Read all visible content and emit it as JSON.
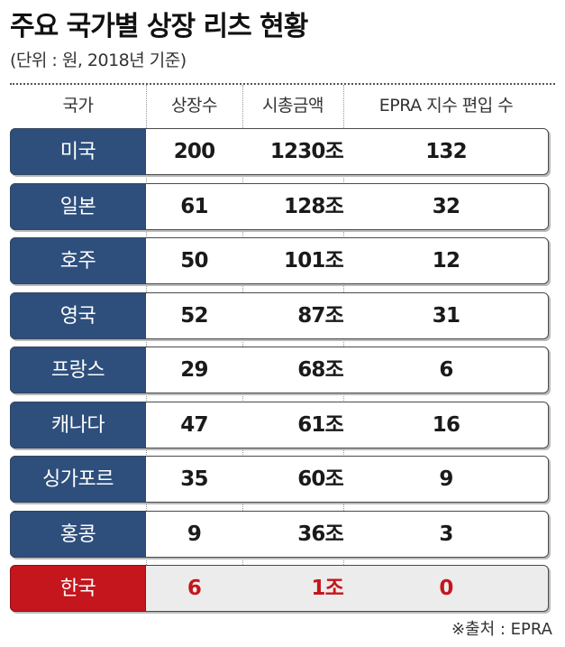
{
  "title": "주요 국가별 상장 리츠 현황",
  "subtitle": "(단위 : 원, 2018년 기준)",
  "source": "※출처 : EPRA",
  "colors": {
    "header_bg": "#2e4f7c",
    "highlight_bg": "#c4161c",
    "highlight_text": "#c4161c"
  },
  "chart_data": {
    "type": "table",
    "columns": [
      "국가",
      "상장수",
      "시총금액",
      "EPRA 지수 편입 수"
    ],
    "rows": [
      {
        "country": "미국",
        "listed": "200",
        "cap": "1230조",
        "epra": "132"
      },
      {
        "country": "일본",
        "listed": "61",
        "cap": "128조",
        "epra": "32"
      },
      {
        "country": "호주",
        "listed": "50",
        "cap": "101조",
        "epra": "12"
      },
      {
        "country": "영국",
        "listed": "52",
        "cap": "87조",
        "epra": "31"
      },
      {
        "country": "프랑스",
        "listed": "29",
        "cap": "68조",
        "epra": "6"
      },
      {
        "country": "캐나다",
        "listed": "47",
        "cap": "61조",
        "epra": "16"
      },
      {
        "country": "싱가포르",
        "listed": "35",
        "cap": "60조",
        "epra": "9"
      },
      {
        "country": "홍콩",
        "listed": "9",
        "cap": "36조",
        "epra": "3"
      },
      {
        "country": "한국",
        "listed": "6",
        "cap": "1조",
        "epra": "0",
        "highlight": true
      }
    ]
  }
}
